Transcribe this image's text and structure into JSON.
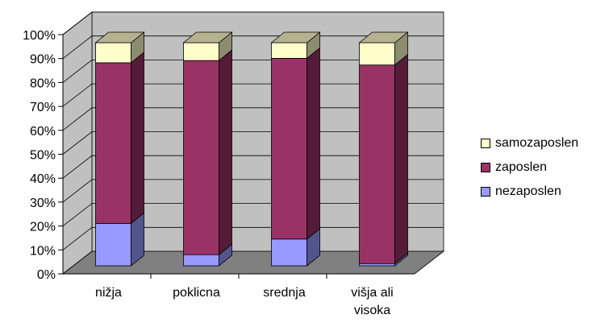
{
  "chart_data": {
    "type": "bar",
    "stacked": "percent",
    "three_d": true,
    "categories": [
      [
        "nižja"
      ],
      [
        "poklicna"
      ],
      [
        "srednja"
      ],
      [
        "višja ali",
        "visoka"
      ]
    ],
    "series": [
      {
        "name": "nezaposlen",
        "color": "#9999ff",
        "values": [
          19,
          5,
          12,
          1
        ]
      },
      {
        "name": "zaposlen",
        "color": "#993366",
        "values": [
          72,
          87,
          81,
          89
        ]
      },
      {
        "name": "samozaposlen",
        "color": "#ffffcc",
        "values": [
          9,
          8,
          7,
          10
        ]
      }
    ],
    "y_ticks": [
      "0%",
      "10%",
      "20%",
      "30%",
      "40%",
      "50%",
      "60%",
      "70%",
      "80%",
      "90%",
      "100%"
    ],
    "ylim": [
      0,
      100
    ],
    "grid": true,
    "legend_position": "right",
    "legend_order": [
      "samozaposlen",
      "zaposlen",
      "nezaposlen"
    ],
    "wall_color": "#c0c0c0",
    "floor_color": "#808080"
  }
}
